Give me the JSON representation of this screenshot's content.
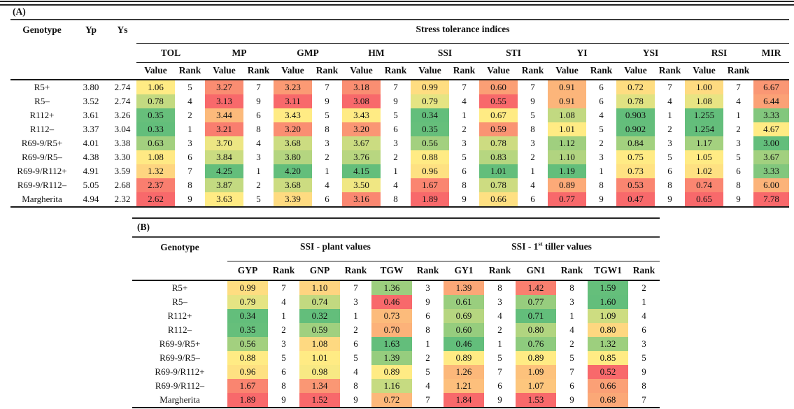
{
  "page": {
    "background": "#ffffff"
  },
  "heatmap_colors": {
    "good": "#63BE7B",
    "mid": "#FFEB84",
    "bad": "#F8696B"
  },
  "table_a": {
    "label": "(A)",
    "fixed_headers": [
      "Genotype",
      "Yp",
      "Ys"
    ],
    "group_header": "Stress tolerance indices",
    "subheaders": {
      "value": "Value",
      "rank": "Rank"
    },
    "indices": [
      {
        "key": "TOL",
        "label": "TOL",
        "invert": true
      },
      {
        "key": "MP",
        "label": "MP",
        "invert": false
      },
      {
        "key": "GMP",
        "label": "GMP",
        "invert": false
      },
      {
        "key": "HM",
        "label": "HM",
        "invert": false
      },
      {
        "key": "SSI",
        "label": "SSI",
        "invert": true
      },
      {
        "key": "STI",
        "label": "STI",
        "invert": false
      },
      {
        "key": "YI",
        "label": "YI",
        "invert": false
      },
      {
        "key": "YSI",
        "label": "YSI",
        "invert": false
      },
      {
        "key": "RSI",
        "label": "RSI",
        "invert": false
      },
      {
        "key": "MIR",
        "label": "MIR",
        "invert": true,
        "single": true
      }
    ],
    "rows": [
      {
        "genotype": "R5+",
        "yp": "3.80",
        "ys": "2.74",
        "cells": [
          [
            "1.06",
            "5"
          ],
          [
            "3.27",
            "7"
          ],
          [
            "3.23",
            "7"
          ],
          [
            "3.18",
            "7"
          ],
          [
            "0.99",
            "7"
          ],
          [
            "0.60",
            "7"
          ],
          [
            "0.91",
            "6"
          ],
          [
            "0.72",
            "7"
          ],
          [
            "1.00",
            "7"
          ],
          [
            "6.67"
          ]
        ]
      },
      {
        "genotype": "R5–",
        "yp": "3.52",
        "ys": "2.74",
        "cells": [
          [
            "0.78",
            "4"
          ],
          [
            "3.13",
            "9"
          ],
          [
            "3.11",
            "9"
          ],
          [
            "3.08",
            "9"
          ],
          [
            "0.79",
            "4"
          ],
          [
            "0.55",
            "9"
          ],
          [
            "0.91",
            "6"
          ],
          [
            "0.78",
            "4"
          ],
          [
            "1.08",
            "4"
          ],
          [
            "6.44"
          ]
        ]
      },
      {
        "genotype": "R112+",
        "yp": "3.61",
        "ys": "3.26",
        "cells": [
          [
            "0.35",
            "2"
          ],
          [
            "3.44",
            "6"
          ],
          [
            "3.43",
            "5"
          ],
          [
            "3.43",
            "5"
          ],
          [
            "0.34",
            "1"
          ],
          [
            "0.67",
            "5"
          ],
          [
            "1.08",
            "4"
          ],
          [
            "0.903",
            "1"
          ],
          [
            "1.255",
            "1"
          ],
          [
            "3.33"
          ]
        ]
      },
      {
        "genotype": "R112–",
        "yp": "3.37",
        "ys": "3.04",
        "cells": [
          [
            "0.33",
            "1"
          ],
          [
            "3.21",
            "8"
          ],
          [
            "3.20",
            "8"
          ],
          [
            "3.20",
            "6"
          ],
          [
            "0.35",
            "2"
          ],
          [
            "0.59",
            "8"
          ],
          [
            "1.01",
            "5"
          ],
          [
            "0.902",
            "2"
          ],
          [
            "1.254",
            "2"
          ],
          [
            "4.67"
          ]
        ]
      },
      {
        "genotype": "R69-9/R5+",
        "yp": "4.01",
        "ys": "3.38",
        "cells": [
          [
            "0.63",
            "3"
          ],
          [
            "3.70",
            "4"
          ],
          [
            "3.68",
            "3"
          ],
          [
            "3.67",
            "3"
          ],
          [
            "0.56",
            "3"
          ],
          [
            "0.78",
            "3"
          ],
          [
            "1.12",
            "2"
          ],
          [
            "0.84",
            "3"
          ],
          [
            "1.17",
            "3"
          ],
          [
            "3.00"
          ]
        ]
      },
      {
        "genotype": "R69-9/R5–",
        "yp": "4.38",
        "ys": "3.30",
        "cells": [
          [
            "1.08",
            "6"
          ],
          [
            "3.84",
            "3"
          ],
          [
            "3.80",
            "2"
          ],
          [
            "3.76",
            "2"
          ],
          [
            "0.88",
            "5"
          ],
          [
            "0.83",
            "2"
          ],
          [
            "1.10",
            "3"
          ],
          [
            "0.75",
            "5"
          ],
          [
            "1.05",
            "5"
          ],
          [
            "3.67"
          ]
        ]
      },
      {
        "genotype": "R69-9/R112+",
        "yp": "4.91",
        "ys": "3.59",
        "cells": [
          [
            "1.32",
            "7"
          ],
          [
            "4.25",
            "1"
          ],
          [
            "4.20",
            "1"
          ],
          [
            "4.15",
            "1"
          ],
          [
            "0.96",
            "6"
          ],
          [
            "1.01",
            "1"
          ],
          [
            "1.19",
            "1"
          ],
          [
            "0.73",
            "6"
          ],
          [
            "1.02",
            "6"
          ],
          [
            "3.33"
          ]
        ]
      },
      {
        "genotype": "R69-9/R112–",
        "yp": "5.05",
        "ys": "2.68",
        "cells": [
          [
            "2.37",
            "8"
          ],
          [
            "3.87",
            "2"
          ],
          [
            "3.68",
            "4"
          ],
          [
            "3.50",
            "4"
          ],
          [
            "1.67",
            "8"
          ],
          [
            "0.78",
            "4"
          ],
          [
            "0.89",
            "8"
          ],
          [
            "0.53",
            "8"
          ],
          [
            "0.74",
            "8"
          ],
          [
            "6.00"
          ]
        ]
      },
      {
        "genotype": "Margherita",
        "yp": "4.94",
        "ys": "2.32",
        "cells": [
          [
            "2.62",
            "9"
          ],
          [
            "3.63",
            "5"
          ],
          [
            "3.39",
            "6"
          ],
          [
            "3.16",
            "8"
          ],
          [
            "1.89",
            "9"
          ],
          [
            "0.66",
            "6"
          ],
          [
            "0.77",
            "9"
          ],
          [
            "0.47",
            "9"
          ],
          [
            "0.65",
            "9"
          ],
          [
            "7.78"
          ]
        ]
      }
    ]
  },
  "table_b": {
    "label": "(B)",
    "genotype_header": "Genotype",
    "rank_label": "Rank",
    "groups": [
      {
        "label_prefix": "SSI - plant values",
        "label_sup": "",
        "label_suffix": "",
        "columns": [
          {
            "key": "GYP",
            "label": "GYP",
            "invert": true
          },
          {
            "key": "GNP",
            "label": "GNP",
            "invert": true
          },
          {
            "key": "TGW",
            "label": "TGW",
            "invert": false
          }
        ]
      },
      {
        "label_prefix": "SSI - 1",
        "label_sup": "st",
        "label_suffix": " tiller values",
        "columns": [
          {
            "key": "GY1",
            "label": "GY1",
            "invert": true
          },
          {
            "key": "GN1",
            "label": "GN1",
            "invert": true
          },
          {
            "key": "TGW1",
            "label": "TGW1",
            "invert": false
          }
        ]
      }
    ],
    "rows": [
      {
        "genotype": "R5+",
        "cells": [
          [
            "0.99",
            "7"
          ],
          [
            "1.10",
            "7"
          ],
          [
            "1.36",
            "3"
          ],
          [
            "1.39",
            "8"
          ],
          [
            "1.42",
            "8"
          ],
          [
            "1.59",
            "2"
          ]
        ]
      },
      {
        "genotype": "R5–",
        "cells": [
          [
            "0.79",
            "4"
          ],
          [
            "0.74",
            "3"
          ],
          [
            "0.46",
            "9"
          ],
          [
            "0.61",
            "3"
          ],
          [
            "0.77",
            "3"
          ],
          [
            "1.60",
            "1"
          ]
        ]
      },
      {
        "genotype": "R112+",
        "cells": [
          [
            "0.34",
            "1"
          ],
          [
            "0.32",
            "1"
          ],
          [
            "0.73",
            "6"
          ],
          [
            "0.69",
            "4"
          ],
          [
            "0.71",
            "1"
          ],
          [
            "1.09",
            "4"
          ]
        ]
      },
      {
        "genotype": "R112–",
        "cells": [
          [
            "0.35",
            "2"
          ],
          [
            "0.59",
            "2"
          ],
          [
            "0.70",
            "8"
          ],
          [
            "0.60",
            "2"
          ],
          [
            "0.80",
            "4"
          ],
          [
            "0.80",
            "6"
          ]
        ]
      },
      {
        "genotype": "R69-9/R5+",
        "cells": [
          [
            "0.56",
            "3"
          ],
          [
            "1.08",
            "6"
          ],
          [
            "1.63",
            "1"
          ],
          [
            "0.46",
            "1"
          ],
          [
            "0.76",
            "2"
          ],
          [
            "1.32",
            "3"
          ]
        ]
      },
      {
        "genotype": "R69-9/R5–",
        "cells": [
          [
            "0.88",
            "5"
          ],
          [
            "1.01",
            "5"
          ],
          [
            "1.39",
            "2"
          ],
          [
            "0.89",
            "5"
          ],
          [
            "0.89",
            "5"
          ],
          [
            "0.85",
            "5"
          ]
        ]
      },
      {
        "genotype": "R69-9/R112+",
        "cells": [
          [
            "0.96",
            "6"
          ],
          [
            "0.98",
            "4"
          ],
          [
            "0.89",
            "5"
          ],
          [
            "1.26",
            "7"
          ],
          [
            "1.09",
            "7"
          ],
          [
            "0.52",
            "9"
          ]
        ]
      },
      {
        "genotype": "R69-9/R112–",
        "cells": [
          [
            "1.67",
            "8"
          ],
          [
            "1.34",
            "8"
          ],
          [
            "1.16",
            "4"
          ],
          [
            "1.21",
            "6"
          ],
          [
            "1.07",
            "6"
          ],
          [
            "0.66",
            "8"
          ]
        ]
      },
      {
        "genotype": "Margherita",
        "cells": [
          [
            "1.89",
            "9"
          ],
          [
            "1.52",
            "9"
          ],
          [
            "0.72",
            "7"
          ],
          [
            "1.84",
            "9"
          ],
          [
            "1.53",
            "9"
          ],
          [
            "0.68",
            "7"
          ]
        ]
      }
    ]
  }
}
